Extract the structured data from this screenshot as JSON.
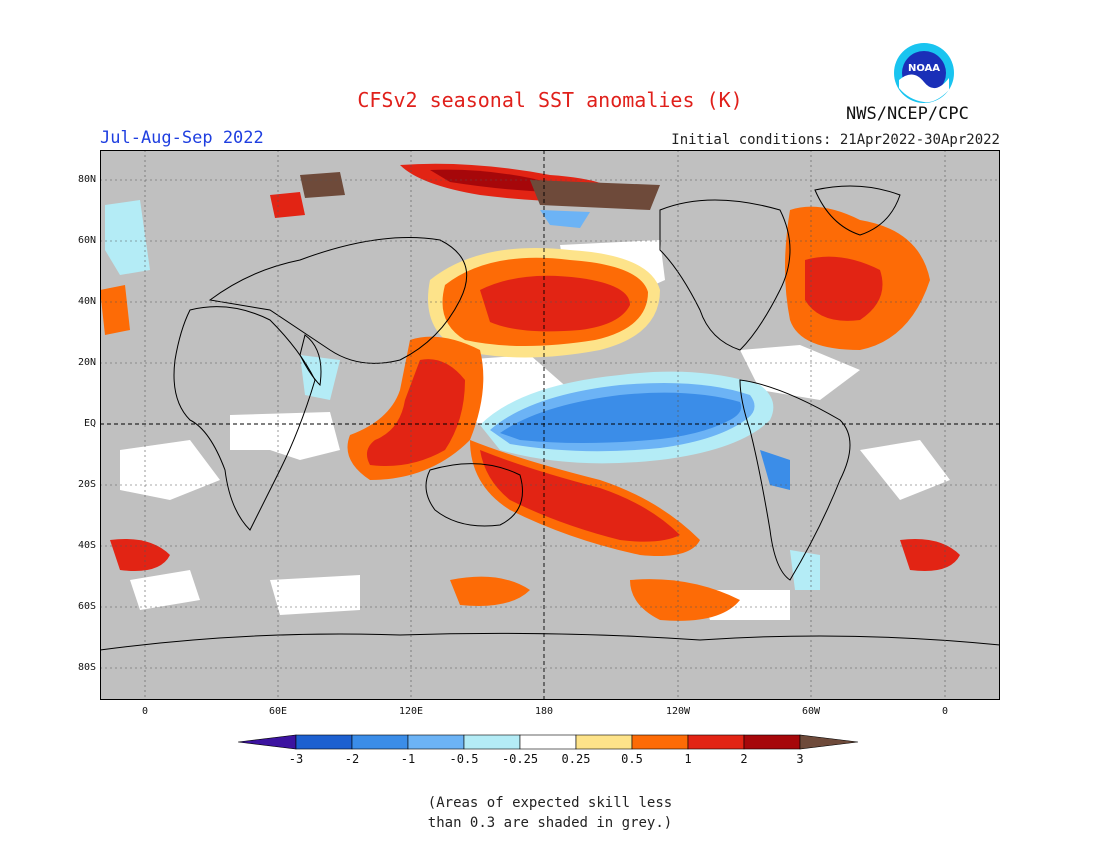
{
  "header": {
    "title": "CFSv2 seasonal SST anomalies (K)",
    "season": "Jul-Aug-Sep 2022",
    "agency": "NWS/NCEP/CPC",
    "initial_conditions": "Initial conditions: 21Apr2022-30Apr2022",
    "logo_text": "NOAA",
    "logo_icon": "noaa-logo-icon"
  },
  "map": {
    "lat_labels": [
      "80N",
      "60N",
      "40N",
      "20N",
      "EQ",
      "20S",
      "40S",
      "60S",
      "80S"
    ],
    "lon_labels": [
      "0",
      "60E",
      "120E",
      "180",
      "120W",
      "60W",
      "0"
    ],
    "land_color": "#c0c0c0",
    "ocean_color": "#c0c0c0",
    "grid_line": "dashed",
    "equator_and_dateline_emphasized": true
  },
  "legend": {
    "tick_labels": [
      "-3",
      "-2",
      "-1",
      "-0.5",
      "-0.25",
      "0.25",
      "0.5",
      "1",
      "2",
      "3"
    ],
    "colors": {
      "below_-3": "#3c13a0",
      "-3_to_-2": "#1d60d0",
      "-2_to_-1": "#3b8de8",
      "-1_to_-0.5": "#6cb3f5",
      "-0.5_to_-0.25": "#b4ecf6",
      "-0.25_to_0.25": "#ffffff",
      "0.25_to_0.5": "#fde38a",
      "0.5_to_1": "#fd6b06",
      "1_to_2": "#e22414",
      "2_to_3": "#a6070a",
      "above_3": "#6e4a3a"
    }
  },
  "footnote": {
    "line1": "(Areas of expected skill less",
    "line2": "than 0.3 are shaded in grey.)"
  }
}
